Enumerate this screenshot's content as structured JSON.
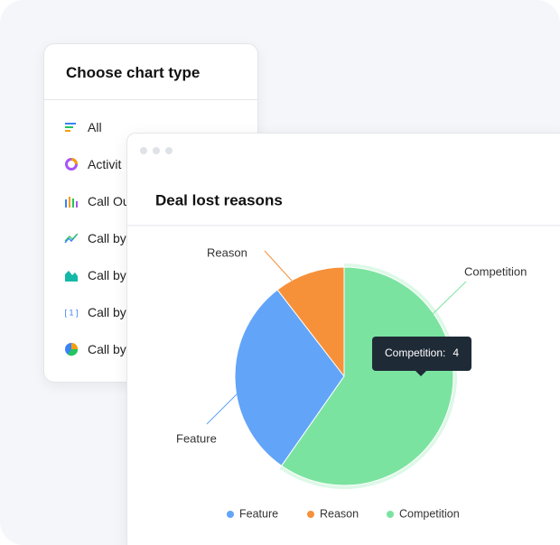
{
  "menu": {
    "title": "Choose chart type",
    "items": [
      "All",
      "Activit",
      "Call Ou",
      "Call by",
      "Call by",
      "Call by",
      "Call by"
    ]
  },
  "chart_data": {
    "type": "pie",
    "title": "Deal lost reasons",
    "categories": [
      "Feature",
      "Reason",
      "Competition"
    ],
    "values": [
      2,
      0.7,
      4
    ],
    "colors": [
      "#62a4f8",
      "#f6913a",
      "#7be3a0"
    ],
    "legend": "bottom"
  }
}
